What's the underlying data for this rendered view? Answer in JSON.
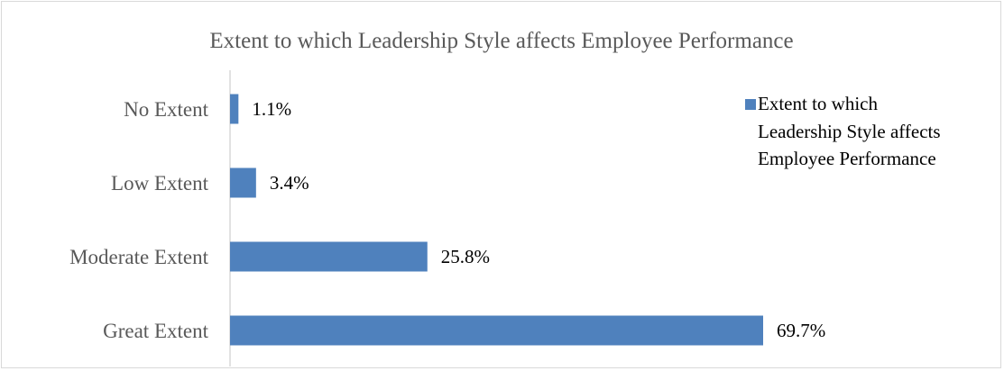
{
  "chart_data": {
    "type": "bar",
    "orientation": "horizontal",
    "title": "Extent to which Leadership Style affects Employee Performance",
    "categories": [
      "No Extent",
      "Low Extent",
      "Moderate Extent",
      "Great Extent"
    ],
    "series": [
      {
        "name": "Extent to which Leadership Style affects Employee Performance",
        "values": [
          1.1,
          3.4,
          25.8,
          69.7
        ],
        "labels": [
          "1.1%",
          "3.4%",
          "25.8%",
          "69.7%"
        ],
        "color": "#4f81bd"
      }
    ],
    "xlim": [
      0,
      80
    ],
    "grid": false,
    "legend_position": "right",
    "legend_lines": [
      "Extent to which",
      "Leadership Style affects",
      "Employee Performance"
    ]
  }
}
